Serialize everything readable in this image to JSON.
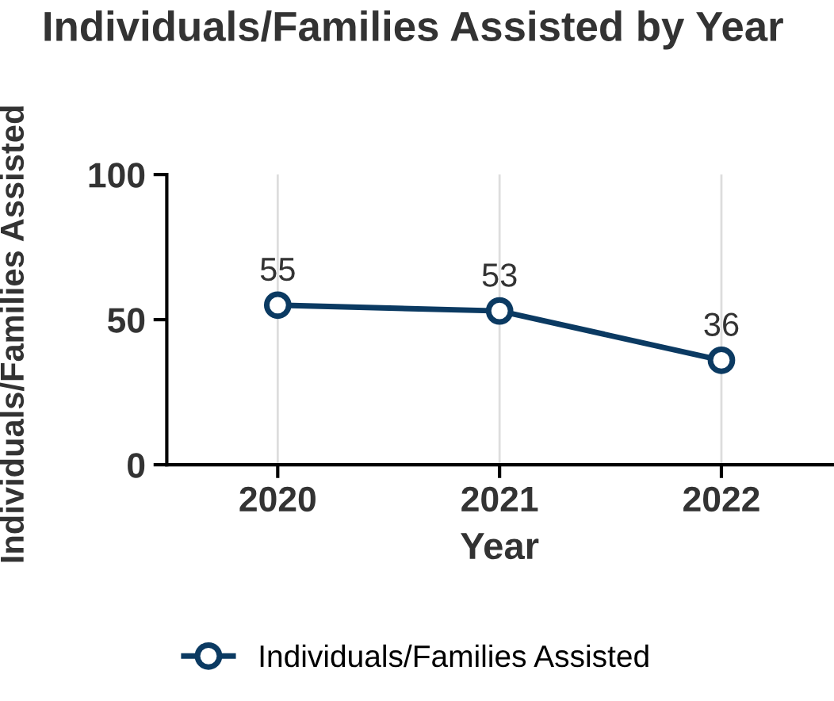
{
  "chart_data": {
    "type": "line",
    "title": "Individuals/Families Assisted by Year",
    "xlabel": "Year",
    "ylabel": "Individuals/Families Assisted",
    "categories": [
      "2020",
      "2021",
      "2022"
    ],
    "series": [
      {
        "name": "Individuals/Families Assisted",
        "color": "#0b3a62",
        "values": [
          55,
          53,
          36
        ]
      }
    ],
    "ylim": [
      0,
      100
    ],
    "yticks": [
      0,
      50,
      100
    ],
    "grid": "x",
    "legend": "bottom",
    "marker": "circle",
    "line_style": "solid",
    "data_labels": true
  }
}
